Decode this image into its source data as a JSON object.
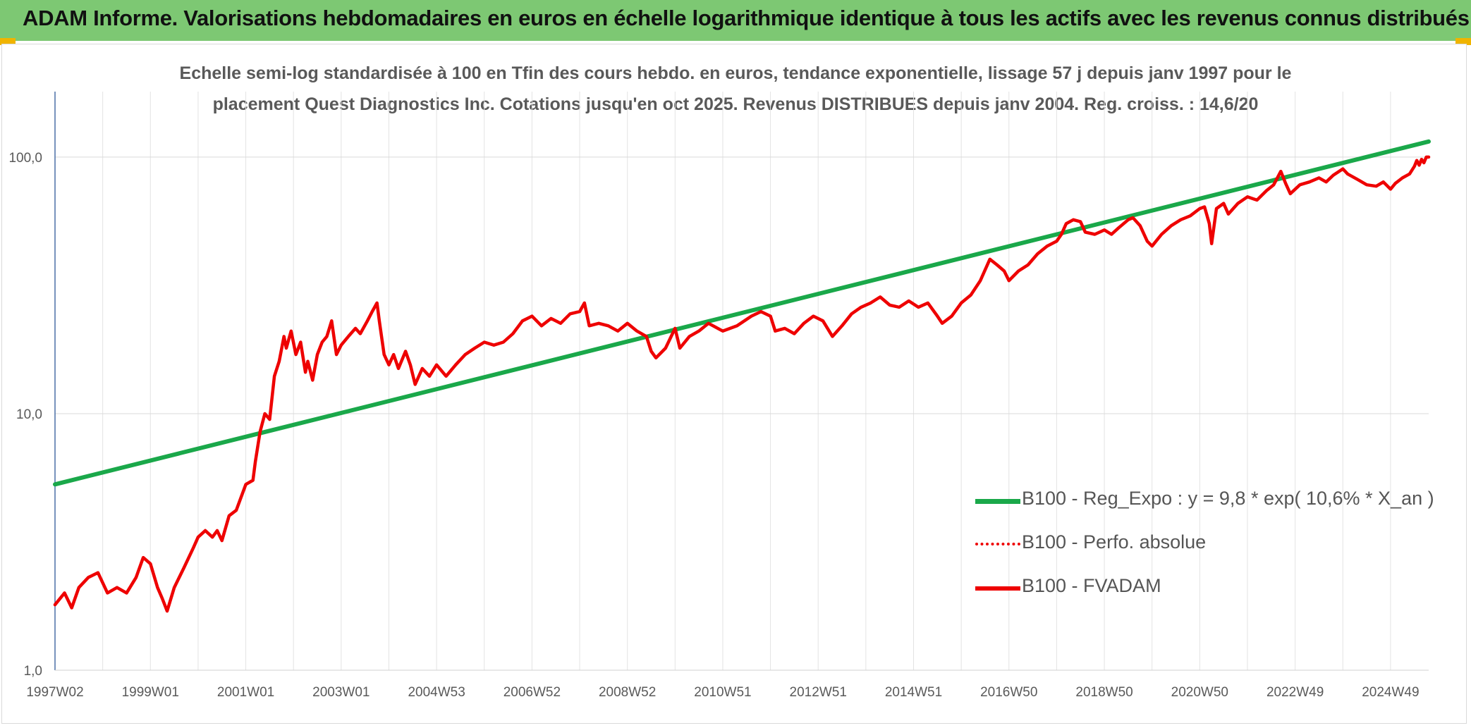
{
  "header": {
    "title": "ADAM Informe. Valorisations hebdomadaires en euros en échelle logarithmique identique à tous les actifs avec les revenus connus distribués"
  },
  "chart_data": {
    "type": "line",
    "y_scale": "log",
    "title_lines": [
      "Echelle semi-log standardisée à 100 en Tfin des cours hebdo. en euros, tendance exponentielle, lissage 57 j depuis janv 1997 pour le",
      "placement Quest Diagnostics Inc. Cotations jusqu'en oct 2025. Revenus DISTRIBUES depuis janv 2004. Reg. croiss. : 14,6/20"
    ],
    "xlabel": "",
    "ylabel": "",
    "ylim": [
      1,
      180
    ],
    "xlim": [
      1997.0,
      2025.8
    ],
    "y_ticks": [
      {
        "value": 1,
        "label": "1,0"
      },
      {
        "value": 10,
        "label": "10,0"
      },
      {
        "value": 100,
        "label": "100,0"
      }
    ],
    "x_ticks": [
      {
        "year": 1997.0,
        "label": "1997W02"
      },
      {
        "year": 1999.0,
        "label": "1999W01"
      },
      {
        "year": 2001.0,
        "label": "2001W01"
      },
      {
        "year": 2003.0,
        "label": "2003W01"
      },
      {
        "year": 2005.0,
        "label": "2004W53"
      },
      {
        "year": 2007.0,
        "label": "2006W52"
      },
      {
        "year": 2009.0,
        "label": "2008W52"
      },
      {
        "year": 2011.0,
        "label": "2010W51"
      },
      {
        "year": 2013.0,
        "label": "2012W51"
      },
      {
        "year": 2015.0,
        "label": "2014W51"
      },
      {
        "year": 2017.0,
        "label": "2016W50"
      },
      {
        "year": 2019.0,
        "label": "2018W50"
      },
      {
        "year": 2021.0,
        "label": "2020W50"
      },
      {
        "year": 2023.0,
        "label": "2022W49"
      },
      {
        "year": 2025.0,
        "label": "2024W49"
      }
    ],
    "grid": true,
    "legend_position": "right",
    "series": [
      {
        "name": "B100 - Reg_Expo : y = 9,8 * exp( 10,6% *  X_an )",
        "color": "#1aa84a",
        "style": "solid",
        "points": [
          [
            1997.0,
            5.3
          ],
          [
            2025.8,
            115
          ]
        ]
      },
      {
        "name": "B100 - Perfo. absolue",
        "color": "#ee0000",
        "style": "dotted",
        "points": []
      },
      {
        "name": "B100 - FVADAM",
        "color": "#ee0000",
        "style": "solid",
        "points": [
          [
            1997.0,
            1.8
          ],
          [
            1997.2,
            2.0
          ],
          [
            1997.35,
            1.75
          ],
          [
            1997.5,
            2.1
          ],
          [
            1997.7,
            2.3
          ],
          [
            1997.9,
            2.4
          ],
          [
            1998.1,
            2.0
          ],
          [
            1998.3,
            2.1
          ],
          [
            1998.5,
            2.0
          ],
          [
            1998.7,
            2.3
          ],
          [
            1998.85,
            2.75
          ],
          [
            1999.0,
            2.6
          ],
          [
            1999.15,
            2.1
          ],
          [
            1999.25,
            1.9
          ],
          [
            1999.35,
            1.7
          ],
          [
            1999.5,
            2.1
          ],
          [
            1999.7,
            2.5
          ],
          [
            1999.9,
            3.0
          ],
          [
            2000.0,
            3.3
          ],
          [
            2000.15,
            3.5
          ],
          [
            2000.3,
            3.3
          ],
          [
            2000.4,
            3.5
          ],
          [
            2000.5,
            3.2
          ],
          [
            2000.65,
            4.0
          ],
          [
            2000.8,
            4.2
          ],
          [
            2001.0,
            5.3
          ],
          [
            2001.15,
            5.5
          ],
          [
            2001.2,
            6.5
          ],
          [
            2001.3,
            8.5
          ],
          [
            2001.4,
            10.0
          ],
          [
            2001.5,
            9.5
          ],
          [
            2001.6,
            14.0
          ],
          [
            2001.7,
            16.0
          ],
          [
            2001.8,
            20.0
          ],
          [
            2001.85,
            18.0
          ],
          [
            2001.95,
            21.0
          ],
          [
            2002.05,
            17.0
          ],
          [
            2002.15,
            19.0
          ],
          [
            2002.25,
            14.5
          ],
          [
            2002.3,
            16.0
          ],
          [
            2002.4,
            13.5
          ],
          [
            2002.5,
            17.0
          ],
          [
            2002.6,
            19.0
          ],
          [
            2002.7,
            20.0
          ],
          [
            2002.8,
            23.0
          ],
          [
            2002.9,
            17.0
          ],
          [
            2003.0,
            18.5
          ],
          [
            2003.15,
            20.0
          ],
          [
            2003.3,
            21.5
          ],
          [
            2003.4,
            20.5
          ],
          [
            2003.55,
            23.0
          ],
          [
            2003.65,
            25.0
          ],
          [
            2003.75,
            27.0
          ],
          [
            2003.8,
            23.0
          ],
          [
            2003.9,
            17.0
          ],
          [
            2004.0,
            15.5
          ],
          [
            2004.1,
            17.0
          ],
          [
            2004.2,
            15.0
          ],
          [
            2004.35,
            17.5
          ],
          [
            2004.45,
            15.5
          ],
          [
            2004.55,
            13.0
          ],
          [
            2004.7,
            15.0
          ],
          [
            2004.85,
            14.0
          ],
          [
            2005.0,
            15.5
          ],
          [
            2005.2,
            14.0
          ],
          [
            2005.4,
            15.5
          ],
          [
            2005.6,
            17.0
          ],
          [
            2005.8,
            18.0
          ],
          [
            2006.0,
            19.0
          ],
          [
            2006.2,
            18.5
          ],
          [
            2006.4,
            19.0
          ],
          [
            2006.6,
            20.5
          ],
          [
            2006.8,
            23.0
          ],
          [
            2007.0,
            24.0
          ],
          [
            2007.2,
            22.0
          ],
          [
            2007.4,
            23.5
          ],
          [
            2007.6,
            22.5
          ],
          [
            2007.8,
            24.5
          ],
          [
            2008.0,
            25.0
          ],
          [
            2008.1,
            27.0
          ],
          [
            2008.2,
            22.0
          ],
          [
            2008.4,
            22.5
          ],
          [
            2008.6,
            22.0
          ],
          [
            2008.8,
            21.0
          ],
          [
            2009.0,
            22.5
          ],
          [
            2009.2,
            21.0
          ],
          [
            2009.4,
            20.0
          ],
          [
            2009.5,
            17.5
          ],
          [
            2009.6,
            16.5
          ],
          [
            2009.8,
            18.0
          ],
          [
            2010.0,
            21.5
          ],
          [
            2010.1,
            18.0
          ],
          [
            2010.3,
            20.0
          ],
          [
            2010.5,
            21.0
          ],
          [
            2010.7,
            22.5
          ],
          [
            2011.0,
            21.0
          ],
          [
            2011.3,
            22.0
          ],
          [
            2011.6,
            24.0
          ],
          [
            2011.8,
            25.0
          ],
          [
            2012.0,
            24.0
          ],
          [
            2012.1,
            21.0
          ],
          [
            2012.3,
            21.5
          ],
          [
            2012.5,
            20.5
          ],
          [
            2012.7,
            22.5
          ],
          [
            2012.9,
            24.0
          ],
          [
            2013.1,
            23.0
          ],
          [
            2013.3,
            20.0
          ],
          [
            2013.5,
            22.0
          ],
          [
            2013.7,
            24.5
          ],
          [
            2013.9,
            26.0
          ],
          [
            2014.1,
            27.0
          ],
          [
            2014.3,
            28.5
          ],
          [
            2014.5,
            26.5
          ],
          [
            2014.7,
            26.0
          ],
          [
            2014.9,
            27.5
          ],
          [
            2015.1,
            26.0
          ],
          [
            2015.3,
            27.0
          ],
          [
            2015.5,
            24.0
          ],
          [
            2015.6,
            22.5
          ],
          [
            2015.8,
            24.0
          ],
          [
            2016.0,
            27.0
          ],
          [
            2016.2,
            29.0
          ],
          [
            2016.4,
            33.0
          ],
          [
            2016.6,
            40.0
          ],
          [
            2016.75,
            38.0
          ],
          [
            2016.9,
            36.0
          ],
          [
            2017.0,
            33.0
          ],
          [
            2017.2,
            36.0
          ],
          [
            2017.4,
            38.0
          ],
          [
            2017.6,
            42.0
          ],
          [
            2017.8,
            45.0
          ],
          [
            2018.0,
            47.0
          ],
          [
            2018.1,
            50.0
          ],
          [
            2018.2,
            55.0
          ],
          [
            2018.35,
            57.0
          ],
          [
            2018.5,
            56.0
          ],
          [
            2018.6,
            51.0
          ],
          [
            2018.8,
            50.0
          ],
          [
            2019.0,
            52.0
          ],
          [
            2019.15,
            50.0
          ],
          [
            2019.3,
            53.0
          ],
          [
            2019.5,
            57.0
          ],
          [
            2019.6,
            58.0
          ],
          [
            2019.75,
            54.0
          ],
          [
            2019.9,
            47.0
          ],
          [
            2020.0,
            45.0
          ],
          [
            2020.2,
            50.0
          ],
          [
            2020.4,
            54.0
          ],
          [
            2020.6,
            57.0
          ],
          [
            2020.8,
            59.0
          ],
          [
            2021.0,
            63.0
          ],
          [
            2021.1,
            64.0
          ],
          [
            2021.2,
            55.0
          ],
          [
            2021.25,
            46.0
          ],
          [
            2021.35,
            63.0
          ],
          [
            2021.5,
            66.0
          ],
          [
            2021.6,
            60.0
          ],
          [
            2021.8,
            66.0
          ],
          [
            2022.0,
            70.0
          ],
          [
            2022.2,
            68.0
          ],
          [
            2022.4,
            74.0
          ],
          [
            2022.55,
            78.0
          ],
          [
            2022.7,
            88.0
          ],
          [
            2022.8,
            79.0
          ],
          [
            2022.9,
            72.0
          ],
          [
            2023.1,
            78.0
          ],
          [
            2023.3,
            80.0
          ],
          [
            2023.5,
            83.0
          ],
          [
            2023.65,
            80.0
          ],
          [
            2023.8,
            85.0
          ],
          [
            2024.0,
            90.0
          ],
          [
            2024.1,
            86.0
          ],
          [
            2024.3,
            82.0
          ],
          [
            2024.5,
            78.0
          ],
          [
            2024.7,
            77.0
          ],
          [
            2024.85,
            80.0
          ],
          [
            2025.0,
            75.0
          ],
          [
            2025.1,
            79.0
          ],
          [
            2025.25,
            83.0
          ],
          [
            2025.4,
            86.0
          ],
          [
            2025.5,
            92.0
          ],
          [
            2025.55,
            97.0
          ],
          [
            2025.6,
            93.0
          ],
          [
            2025.65,
            98.0
          ],
          [
            2025.7,
            95.0
          ],
          [
            2025.75,
            100.0
          ],
          [
            2025.8,
            100.0
          ]
        ]
      }
    ]
  }
}
